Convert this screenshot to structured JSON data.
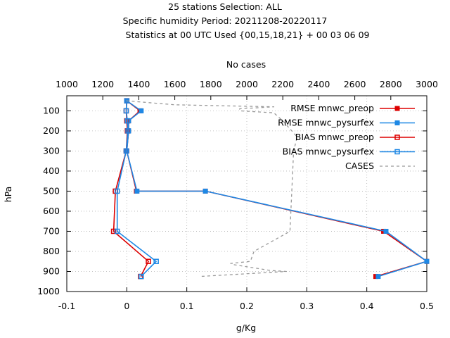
{
  "chart_data": {
    "type": "line",
    "title_lines": [
      "25 stations Selection: ALL",
      "Specific humidity  Period: 20211208-20220117",
      "Statistics at 00 UTC  Used {00,15,18,21} + 00 03 06 09"
    ],
    "xlabel": "g/Kg",
    "ylabel": "hPa",
    "x2label": "No cases",
    "xlim": [
      -0.1,
      0.5
    ],
    "ylim": [
      1000,
      25
    ],
    "x2lim": [
      1000,
      3000
    ],
    "xticks": [
      -0.1,
      0,
      0.1,
      0.2,
      0.3,
      0.4,
      0.5
    ],
    "xtick_labels": [
      "-0.1",
      "0",
      "0.1",
      "0.2",
      "0.3",
      "0.4",
      "0.5"
    ],
    "yticks": [
      100,
      200,
      300,
      400,
      500,
      600,
      700,
      800,
      900,
      1000
    ],
    "ytick_labels": [
      "100",
      "200",
      "300",
      "400",
      "500",
      "600",
      "700",
      "800",
      "900",
      "1000"
    ],
    "x2ticks": [
      1000,
      1200,
      1400,
      1600,
      1800,
      2000,
      2200,
      2400,
      2600,
      2800,
      3000
    ],
    "x2tick_labels": [
      "1000",
      "1200",
      "1400",
      "1600",
      "1800",
      "2000",
      "2200",
      "2400",
      "2600",
      "2800",
      "3000"
    ],
    "legend_position": "top-right",
    "series": [
      {
        "name": "RMSE mnwc_preop",
        "color": "#dd0000",
        "marker": "filled-square",
        "x": [
          0.0,
          0.022,
          0.003,
          0.003,
          0.0,
          0.016,
          0.131,
          0.428,
          0.5,
          0.415
        ],
        "y": [
          50,
          100,
          150,
          200,
          300,
          500,
          500,
          700,
          850,
          925
        ]
      },
      {
        "name": "RMSE mnwc_pysurfex",
        "color": "#1e88e5",
        "marker": "filled-square",
        "x": [
          0.0,
          0.024,
          0.003,
          0.003,
          0.0,
          0.017,
          0.131,
          0.432,
          0.5,
          0.419
        ],
        "y": [
          50,
          100,
          150,
          200,
          300,
          500,
          500,
          700,
          850,
          925
        ]
      },
      {
        "name": "BIAS mnwc_preop",
        "color": "#dd0000",
        "marker": "open-square",
        "x": [
          0.0,
          -0.001,
          0.0,
          0.001,
          -0.001,
          -0.019,
          -0.022,
          0.036,
          0.023
        ],
        "y": [
          50,
          100,
          150,
          200,
          300,
          500,
          700,
          850,
          925
        ]
      },
      {
        "name": "BIAS mnwc_pysurfex",
        "color": "#1e88e5",
        "marker": "open-square",
        "x": [
          0.0,
          -0.001,
          0.001,
          0.002,
          -0.001,
          -0.016,
          -0.016,
          0.049,
          0.024
        ],
        "y": [
          50,
          100,
          150,
          200,
          300,
          500,
          700,
          850,
          925
        ]
      },
      {
        "name": "CASES",
        "color": "#999999",
        "dash": true,
        "x2": [
          1330,
          1600,
          2150,
          1960,
          1960,
          2150,
          2200,
          2280,
          2260,
          2250,
          2240,
          2040,
          2020,
          1910,
          1920,
          2130,
          2220,
          1740
        ],
        "y": [
          50,
          70,
          80,
          90,
          100,
          110,
          150,
          230,
          300,
          500,
          700,
          800,
          850,
          860,
          865,
          895,
          900,
          925
        ]
      }
    ]
  }
}
